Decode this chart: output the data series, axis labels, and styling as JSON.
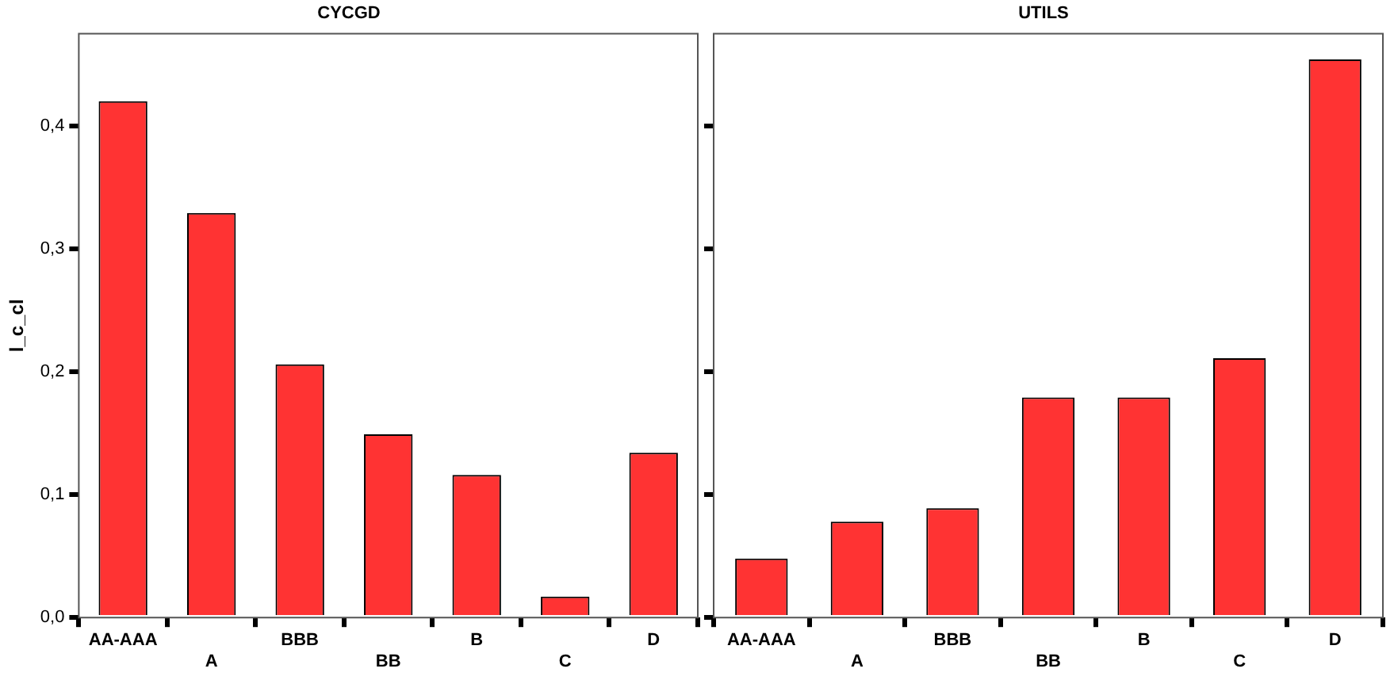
{
  "chart_data": [
    {
      "type": "bar",
      "title": "CYCGD",
      "ylabel": "l_c_cl",
      "categories": [
        "AA-AAA",
        "A",
        "BBB",
        "BB",
        "B",
        "C",
        "D"
      ],
      "values": [
        0.42,
        0.329,
        0.206,
        0.149,
        0.116,
        0.017,
        0.134
      ],
      "color": "#ff3333",
      "ylim": [
        0,
        0.475
      ],
      "yticks": [
        {
          "value": 0,
          "label": "0,0"
        },
        {
          "value": 0.1,
          "label": "0,1"
        },
        {
          "value": 0.2,
          "label": "0,2"
        },
        {
          "value": 0.3,
          "label": "0,3"
        },
        {
          "value": 0.4,
          "label": "0,4"
        }
      ],
      "grid": false,
      "legend": false
    },
    {
      "type": "bar",
      "title": "UTILS",
      "categories": [
        "AA-AAA",
        "A",
        "BBB",
        "BB",
        "B",
        "C",
        "D"
      ],
      "values": [
        0.048,
        0.078,
        0.089,
        0.179,
        0.179,
        0.211,
        0.454
      ],
      "color": "#ff3333",
      "ylim": [
        0,
        0.475
      ],
      "yticks": [
        {
          "value": 0,
          "label": null
        },
        {
          "value": 0.1,
          "label": null
        },
        {
          "value": 0.2,
          "label": null
        },
        {
          "value": 0.3,
          "label": null
        },
        {
          "value": 0.4,
          "label": null
        }
      ],
      "grid": false,
      "legend": false,
      "tick_labels": "x"
    }
  ]
}
